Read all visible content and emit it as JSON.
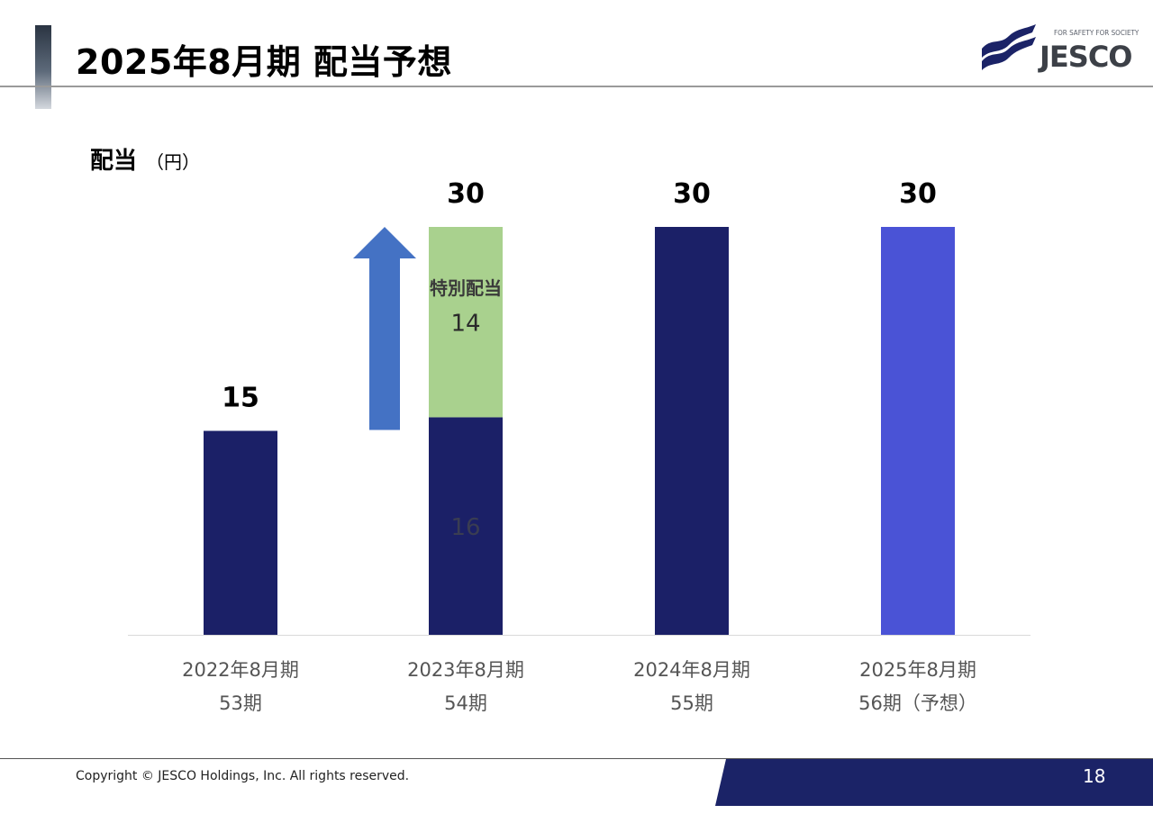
{
  "header": {
    "title": "2025年8月期 配当予想",
    "logo_tagline": "FOR SAFETY FOR SOCIETY",
    "logo_word": "JESCO"
  },
  "chart_heading": {
    "main": "配当",
    "unit": "（円）"
  },
  "chart_data": {
    "type": "bar",
    "stacked": true,
    "categories": [
      [
        "2022年8月期",
        "53期"
      ],
      [
        "2023年8月期",
        "54期"
      ],
      [
        "2024年8月期",
        "55期"
      ],
      [
        "2025年8月期",
        "56期（予想）"
      ]
    ],
    "series": [
      {
        "name": "",
        "values": [
          15,
          16,
          30,
          30
        ],
        "colors": [
          "#1b2067",
          "#1b2067",
          "#1b2067",
          "#4a53d6"
        ],
        "show_labels": [
          false,
          true,
          false,
          false
        ]
      },
      {
        "name": "特別配当",
        "values": [
          0,
          14,
          0,
          0
        ],
        "colors": [
          "#a9d18e",
          "#a9d18e",
          "#a9d18e",
          "#a9d18e"
        ],
        "show_labels": [
          false,
          true,
          false,
          false
        ]
      }
    ],
    "totals": [
      15,
      30,
      30,
      30
    ],
    "annotations": [
      {
        "text": "特別配当",
        "category_index": 1
      }
    ],
    "arrow": {
      "color": "#4472c4",
      "from_value": 15,
      "to_value": 30
    },
    "ylim": [
      0,
      30
    ],
    "grid": false,
    "legend": "none"
  },
  "footer": {
    "copyright": "Copyright © JESCO Holdings, Inc.  All rights reserved.",
    "page_number": "18"
  }
}
